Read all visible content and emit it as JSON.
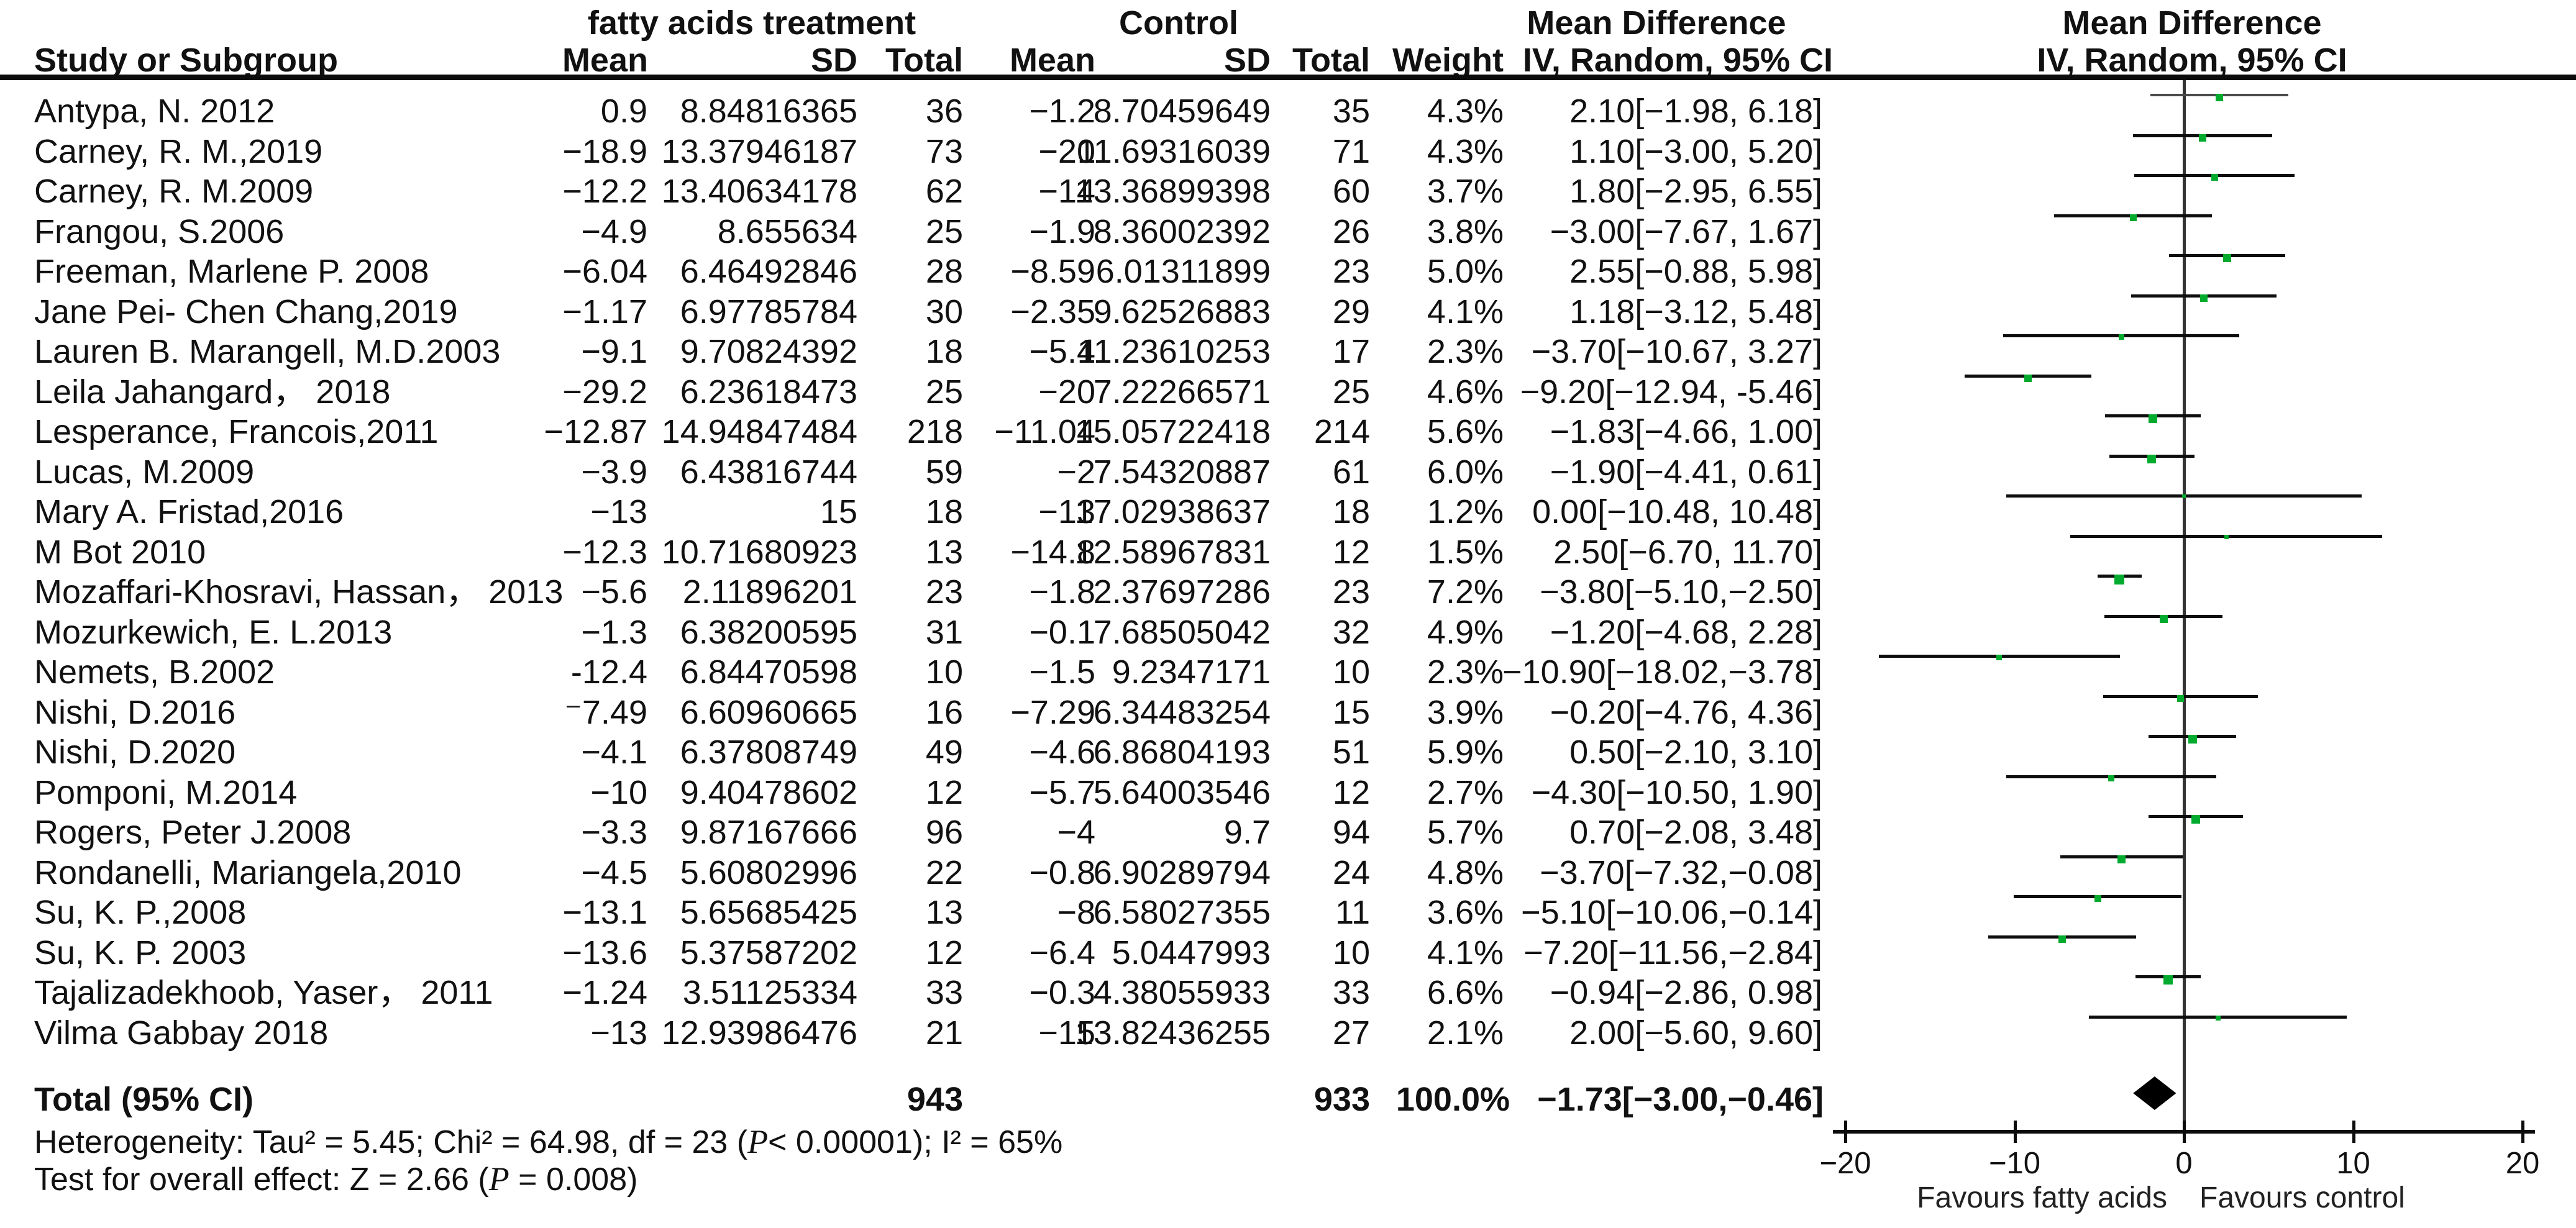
{
  "header": {
    "group_treatment": "fatty acids treatment",
    "group_control": "Control",
    "group_md_text": "Mean Difference",
    "group_md_plot": "Mean Difference",
    "col_study": "Study or Subgroup",
    "col_mean_t": "Mean",
    "col_sd_t": "SD",
    "col_total_t": "Total",
    "col_mean_c": "Mean",
    "col_sd_c": "SD",
    "col_total_c": "Total",
    "col_weight": "Weight",
    "col_ci_text": "IV, Random, 95% CI",
    "col_ci_plot": "IV, Random, 95% CI"
  },
  "chart_data": {
    "type": "forest",
    "effect_measure": "Mean Difference, IV, Random, 95% CI",
    "marker_color": "#00ab2e",
    "x_axis": {
      "min": -20,
      "max": 20,
      "ticks": [
        -20,
        -10,
        0,
        10,
        20
      ],
      "tick_labels": [
        "−20",
        "−10",
        "0",
        "10",
        "20"
      ],
      "favours_left": "Favours fatty acids",
      "favours_right": "Favours control"
    },
    "studies": [
      {
        "name": "Antypa, N. 2012",
        "mean_t": "0.9",
        "sd_t": "8.84816365",
        "n_t": "36",
        "mean_c": "−1.2",
        "sd_c": "8.70459649",
        "n_c": "35",
        "weight": "4.3%",
        "weight_value": 4.3,
        "md": 2.1,
        "lo": -1.98,
        "hi": 6.18,
        "ci_text": "2.10[−1.98, 6.18]"
      },
      {
        "name": "Carney, R. M.,2019",
        "mean_t": "−18.9",
        "sd_t": "13.37946187",
        "n_t": "73",
        "mean_c": "−20",
        "sd_c": "11.69316039",
        "n_c": "71",
        "weight": "4.3%",
        "weight_value": 4.3,
        "md": 1.1,
        "lo": -3.0,
        "hi": 5.2,
        "ci_text": "1.10[−3.00, 5.20]"
      },
      {
        "name": "Carney, R. M.2009",
        "mean_t": "−12.2",
        "sd_t": "13.40634178",
        "n_t": "62",
        "mean_c": "−14",
        "sd_c": "13.36899398",
        "n_c": "60",
        "weight": "3.7%",
        "weight_value": 3.7,
        "md": 1.8,
        "lo": -2.95,
        "hi": 6.55,
        "ci_text": "1.80[−2.95, 6.55]"
      },
      {
        "name": "Frangou, S.2006",
        "mean_t": "−4.9",
        "sd_t": "8.655634",
        "n_t": "25",
        "mean_c": "−1.9",
        "sd_c": "8.36002392",
        "n_c": "26",
        "weight": "3.8%",
        "weight_value": 3.8,
        "md": -3.0,
        "lo": -7.67,
        "hi": 1.67,
        "ci_text": "−3.00[−7.67, 1.67]"
      },
      {
        "name": "Freeman, Marlene P. 2008",
        "mean_t": "−6.04",
        "sd_t": "6.46492846",
        "n_t": "28",
        "mean_c": "−8.59",
        "sd_c": "6.01311899",
        "n_c": "23",
        "weight": "5.0%",
        "weight_value": 5.0,
        "md": 2.55,
        "lo": -0.88,
        "hi": 5.98,
        "ci_text": "2.55[−0.88, 5.98]"
      },
      {
        "name": "Jane Pei- Chen Chang,2019",
        "mean_t": "−1.17",
        "sd_t": "6.97785784",
        "n_t": "30",
        "mean_c": "−2.35",
        "sd_c": "9.62526883",
        "n_c": "29",
        "weight": "4.1%",
        "weight_value": 4.1,
        "md": 1.18,
        "lo": -3.12,
        "hi": 5.48,
        "ci_text": "1.18[−3.12, 5.48]"
      },
      {
        "name": "Lauren B. Marangell, M.D.2003",
        "mean_t": "−9.1",
        "sd_t": "9.70824392",
        "n_t": "18",
        "mean_c": "−5.4",
        "sd_c": "11.23610253",
        "n_c": "17",
        "weight": "2.3%",
        "weight_value": 2.3,
        "md": -3.7,
        "lo": -10.67,
        "hi": 3.27,
        "ci_text": "−3.70[−10.67, 3.27]"
      },
      {
        "name": "Leila Jahangard， 2018",
        "mean_t": "−29.2",
        "sd_t": "6.23618473",
        "n_t": "25",
        "mean_c": "−20",
        "sd_c": "7.22266571",
        "n_c": "25",
        "weight": "4.6%",
        "weight_value": 4.6,
        "md": -9.2,
        "lo": -12.94,
        "hi": -5.46,
        "ci_text": "−9.20[−12.94, -5.46]"
      },
      {
        "name": "Lesperance, Francois,2011",
        "mean_t": "−12.87",
        "sd_t": "14.94847484",
        "n_t": "218",
        "mean_c": "−11.04",
        "sd_c": "15.05722418",
        "n_c": "214",
        "weight": "5.6%",
        "weight_value": 5.6,
        "md": -1.83,
        "lo": -4.66,
        "hi": 1.0,
        "ci_text": "−1.83[−4.66, 1.00]"
      },
      {
        "name": "Lucas, M.2009",
        "mean_t": "−3.9",
        "sd_t": "6.43816744",
        "n_t": "59",
        "mean_c": "−2",
        "sd_c": "7.54320887",
        "n_c": "61",
        "weight": "6.0%",
        "weight_value": 6.0,
        "md": -1.9,
        "lo": -4.41,
        "hi": 0.61,
        "ci_text": "−1.90[−4.41, 0.61]"
      },
      {
        "name": "Mary A. Fristad,2016",
        "mean_t": "−13",
        "sd_t": "15",
        "n_t": "18",
        "mean_c": "−13",
        "sd_c": "17.02938637",
        "n_c": "18",
        "weight": "1.2%",
        "weight_value": 1.2,
        "md": 0.0,
        "lo": -10.48,
        "hi": 10.48,
        "ci_text": "0.00[−10.48, 10.48]"
      },
      {
        "name": "M Bot 2010",
        "mean_t": "−12.3",
        "sd_t": "10.71680923",
        "n_t": "13",
        "mean_c": "−14.8",
        "sd_c": "12.58967831",
        "n_c": "12",
        "weight": "1.5%",
        "weight_value": 1.5,
        "md": 2.5,
        "lo": -6.7,
        "hi": 11.7,
        "ci_text": "2.50[−6.70, 11.70]"
      },
      {
        "name": "Mozaffari-Khosravi, Hassan， 2013",
        "mean_t": "−5.6",
        "sd_t": "2.11896201",
        "n_t": "23",
        "mean_c": "−1.8",
        "sd_c": "2.37697286",
        "n_c": "23",
        "weight": "7.2%",
        "weight_value": 7.2,
        "md": -3.8,
        "lo": -5.1,
        "hi": -2.5,
        "ci_text": "−3.80[−5.10,−2.50]"
      },
      {
        "name": "Mozurkewich, E. L.2013",
        "mean_t": "−1.3",
        "sd_t": "6.38200595",
        "n_t": "31",
        "mean_c": "−0.1",
        "sd_c": "7.68505042",
        "n_c": "32",
        "weight": "4.9%",
        "weight_value": 4.9,
        "md": -1.2,
        "lo": -4.68,
        "hi": 2.28,
        "ci_text": "−1.20[−4.68, 2.28]"
      },
      {
        "name": "Nemets, B.2002",
        "mean_t": "-12.4",
        "sd_t": "6.84470598",
        "n_t": "10",
        "mean_c": "−1.5",
        "sd_c": "9.2347171",
        "n_c": "10",
        "weight": "2.3%",
        "weight_value": 2.3,
        "md": -10.9,
        "lo": -18.02,
        "hi": -3.78,
        "ci_text": "−10.90[−18.02,−3.78]"
      },
      {
        "name": "Nishi, D.2016",
        "mean_t": "⁻7.49",
        "sd_t": "6.60960665",
        "n_t": "16",
        "mean_c": "−7.29",
        "sd_c": "6.34483254",
        "n_c": "15",
        "weight": "3.9%",
        "weight_value": 3.9,
        "md": -0.2,
        "lo": -4.76,
        "hi": 4.36,
        "ci_text": "−0.20[−4.76, 4.36]"
      },
      {
        "name": "Nishi, D.2020",
        "mean_t": "−4.1",
        "sd_t": "6.37808749",
        "n_t": "49",
        "mean_c": "−4.6",
        "sd_c": "6.86804193",
        "n_c": "51",
        "weight": "5.9%",
        "weight_value": 5.9,
        "md": 0.5,
        "lo": -2.1,
        "hi": 3.1,
        "ci_text": "0.50[−2.10, 3.10]"
      },
      {
        "name": "Pomponi, M.2014",
        "mean_t": "−10",
        "sd_t": "9.40478602",
        "n_t": "12",
        "mean_c": "−5.7",
        "sd_c": "5.64003546",
        "n_c": "12",
        "weight": "2.7%",
        "weight_value": 2.7,
        "md": -4.3,
        "lo": -10.5,
        "hi": 1.9,
        "ci_text": "−4.30[−10.50, 1.90]"
      },
      {
        "name": "Rogers, Peter J.2008",
        "mean_t": "−3.3",
        "sd_t": "9.87167666",
        "n_t": "96",
        "mean_c": "−4",
        "sd_c": "9.7",
        "n_c": "94",
        "weight": "5.7%",
        "weight_value": 5.7,
        "md": 0.7,
        "lo": -2.08,
        "hi": 3.48,
        "ci_text": "0.70[−2.08, 3.48]"
      },
      {
        "name": "Rondanelli, Mariangela,2010",
        "mean_t": "−4.5",
        "sd_t": "5.60802996",
        "n_t": "22",
        "mean_c": "−0.8",
        "sd_c": "6.90289794",
        "n_c": "24",
        "weight": "4.8%",
        "weight_value": 4.8,
        "md": -3.7,
        "lo": -7.32,
        "hi": -0.08,
        "ci_text": "−3.70[−7.32,−0.08]"
      },
      {
        "name": "Su, K. P.,2008",
        "mean_t": "−13.1",
        "sd_t": "5.65685425",
        "n_t": "13",
        "mean_c": "−8",
        "sd_c": "6.58027355",
        "n_c": "11",
        "weight": "3.6%",
        "weight_value": 3.6,
        "md": -5.1,
        "lo": -10.06,
        "hi": -0.14,
        "ci_text": "−5.10[−10.06,−0.14]"
      },
      {
        "name": "Su, K. P. 2003",
        "mean_t": "−13.6",
        "sd_t": "5.37587202",
        "n_t": "12",
        "mean_c": "−6.4",
        "sd_c": "5.0447993",
        "n_c": "10",
        "weight": "4.1%",
        "weight_value": 4.1,
        "md": -7.2,
        "lo": -11.56,
        "hi": -2.84,
        "ci_text": "−7.20[−11.56,−2.84]"
      },
      {
        "name": "Tajalizadekhoob, Yaser， 2011",
        "mean_t": "−1.24",
        "sd_t": "3.51125334",
        "n_t": "33",
        "mean_c": "−0.3",
        "sd_c": "4.38055933",
        "n_c": "33",
        "weight": "6.6%",
        "weight_value": 6.6,
        "md": -0.94,
        "lo": -2.86,
        "hi": 0.98,
        "ci_text": "−0.94[−2.86, 0.98]"
      },
      {
        "name": "Vilma Gabbay 2018",
        "mean_t": "−13",
        "sd_t": "12.93986476",
        "n_t": "21",
        "mean_c": "−15",
        "sd_c": "13.82436255",
        "n_c": "27",
        "weight": "2.1%",
        "weight_value": 2.1,
        "md": 2.0,
        "lo": -5.6,
        "hi": 9.6,
        "ci_text": "2.00[−5.60, 9.60]"
      }
    ],
    "total": {
      "label": "Total (95% CI)",
      "n_t": "943",
      "n_c": "933",
      "weight": "100.0%",
      "md": -1.73,
      "lo": -3.0,
      "hi": -0.46,
      "ci_text": "−1.73[−3.00,−0.46]"
    },
    "heterogeneity": {
      "prefix": "Heterogeneity: Tau² = 5.45; Chi² = 64.98, df = 23 (",
      "p": "P",
      "suffix": "< 0.00001); I² = 65%"
    },
    "overall_effect": {
      "prefix": "Test for overall effect: Z = 2.66 (",
      "p": "P",
      "suffix": " = 0.008)"
    }
  }
}
